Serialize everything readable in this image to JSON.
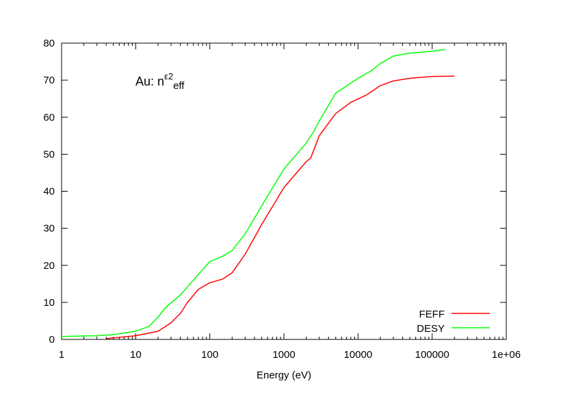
{
  "chart_data": {
    "type": "line",
    "title": "",
    "annotation": {
      "base": "Au: n",
      "sup": "ε2",
      "sub": "eff"
    },
    "xlabel": "Energy (eV)",
    "ylabel": "",
    "xscale": "log",
    "xlim": [
      1,
      1000000
    ],
    "ylim": [
      0,
      80
    ],
    "xticks": [
      1,
      10,
      100,
      1000,
      10000,
      100000,
      1000000
    ],
    "xtick_labels": [
      "1",
      "10",
      "100",
      "1000",
      "10000",
      "100000",
      "1e+06"
    ],
    "yticks": [
      0,
      10,
      20,
      30,
      40,
      50,
      60,
      70,
      80
    ],
    "ytick_labels": [
      "0",
      "10",
      "20",
      "30",
      "40",
      "50",
      "60",
      "70",
      "80"
    ],
    "grid": false,
    "legend_position": "bottom-right",
    "series": [
      {
        "name": "FEFF",
        "color": "#ff0000",
        "x": [
          4,
          10,
          20,
          30,
          40,
          50,
          70,
          100,
          150,
          200,
          300,
          500,
          1000,
          2000,
          2300,
          3000,
          5000,
          8000,
          13000,
          20000,
          30000,
          50000,
          100000,
          200000
        ],
        "y": [
          0.2,
          1.0,
          2.2,
          4.5,
          7,
          10,
          13.5,
          15.3,
          16.3,
          18,
          23,
          31,
          41,
          48,
          49,
          55,
          61,
          64,
          66,
          68.5,
          69.8,
          70.5,
          71,
          71.1
        ]
      },
      {
        "name": "DESY",
        "color": "#00ff00",
        "x": [
          1,
          3,
          5,
          10,
          15,
          20,
          25,
          40,
          60,
          100,
          150,
          200,
          300,
          500,
          1000,
          2000,
          2500,
          3000,
          5000,
          10000,
          15000,
          20000,
          30000,
          50000,
          100000,
          150000
        ],
        "y": [
          0.8,
          1.0,
          1.3,
          2.2,
          3.5,
          6,
          8.5,
          12,
          16,
          21,
          22.5,
          24,
          28.5,
          36,
          46,
          53,
          56,
          59,
          66.5,
          70.5,
          72.5,
          74.5,
          76.5,
          77.3,
          77.8,
          78.3
        ]
      }
    ]
  }
}
